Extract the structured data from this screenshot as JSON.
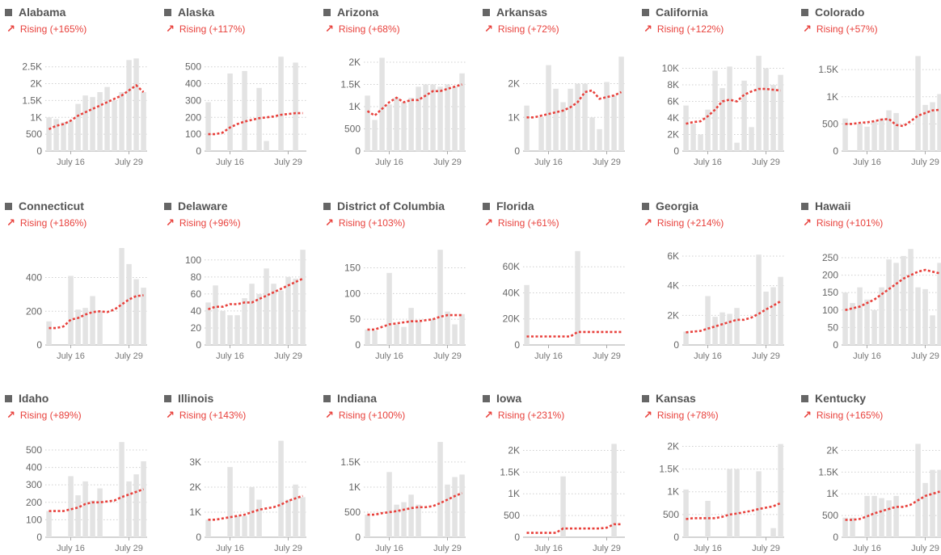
{
  "colors": {
    "bar": "#e3e3e3",
    "trend_line": "#e8413c",
    "rising": "#e8413c",
    "grid": "#cfcfcf",
    "axis": "#aaaaaa"
  },
  "icons": {
    "state": "state-shape-icon",
    "trend": "trend-up-arrow-icon"
  },
  "chart_data": [
    {
      "type": "bar",
      "state": "Alabama",
      "trend": "Rising (+165%)",
      "x_ticks": [
        "July 16",
        "July 29"
      ],
      "yticks": [
        0,
        500,
        1000,
        1500,
        2000,
        2500
      ],
      "ytick_labels": [
        "0",
        "500",
        "1K",
        "1.5K",
        "2K",
        "2.5K"
      ],
      "ylim": [
        0,
        2900
      ],
      "values": [
        1000,
        950,
        850,
        900,
        1400,
        1650,
        1600,
        1750,
        1900,
        1500,
        1750,
        2700,
        2750,
        1750
      ],
      "trend_values": [
        650,
        750,
        800,
        900,
        1050,
        1150,
        1250,
        1350,
        1450,
        1550,
        1650,
        1800,
        1950,
        1750
      ]
    },
    {
      "type": "bar",
      "state": "Alaska",
      "trend": "Rising (+117%)",
      "x_ticks": [
        "July 16",
        "July 29"
      ],
      "yticks": [
        0,
        100,
        200,
        300,
        400,
        500
      ],
      "ytick_labels": [
        "0",
        "100",
        "200",
        "300",
        "400",
        "500"
      ],
      "ylim": [
        0,
        580
      ],
      "values": [
        290,
        0,
        0,
        460,
        0,
        475,
        0,
        375,
        60,
        0,
        560,
        0,
        525,
        0
      ],
      "trend_values": [
        100,
        100,
        110,
        140,
        160,
        175,
        185,
        195,
        200,
        205,
        215,
        220,
        225,
        225
      ]
    },
    {
      "type": "bar",
      "state": "Arizona",
      "trend": "Rising (+68%)",
      "x_ticks": [
        "July 16",
        "July 29"
      ],
      "yticks": [
        0,
        500,
        1000,
        1500,
        2000
      ],
      "ytick_labels": [
        "0",
        "500",
        "1K",
        "1.5K",
        "2K"
      ],
      "ylim": [
        0,
        2200
      ],
      "values": [
        1250,
        700,
        2100,
        1050,
        1200,
        1100,
        1200,
        1450,
        1500,
        1500,
        1450,
        1500,
        1450,
        1750
      ],
      "trend_values": [
        900,
        800,
        950,
        1100,
        1200,
        1100,
        1150,
        1150,
        1250,
        1350,
        1350,
        1400,
        1450,
        1500
      ]
    },
    {
      "type": "bar",
      "state": "Arkansas",
      "trend": "Rising (+72%)",
      "x_ticks": [
        "July 16",
        "July 29"
      ],
      "yticks": [
        0,
        1000,
        2000
      ],
      "ytick_labels": [
        "0",
        "1K",
        "2K"
      ],
      "ylim": [
        0,
        2900
      ],
      "values": [
        1350,
        0,
        1000,
        2550,
        1850,
        1450,
        1850,
        2000,
        2000,
        1000,
        650,
        2050,
        1650,
        2800
      ],
      "trend_values": [
        1000,
        1000,
        1050,
        1100,
        1150,
        1200,
        1300,
        1450,
        1750,
        1800,
        1550,
        1600,
        1650,
        1750
      ]
    },
    {
      "type": "bar",
      "state": "California",
      "trend": "Rising (+122%)",
      "x_ticks": [
        "July 16",
        "July 29"
      ],
      "yticks": [
        0,
        2000,
        4000,
        6000,
        8000,
        10000
      ],
      "ytick_labels": [
        "0",
        "2K",
        "4K",
        "6K",
        "8K",
        "10K"
      ],
      "ylim": [
        0,
        11800
      ],
      "values": [
        5500,
        3300,
        2000,
        5000,
        9700,
        7600,
        10200,
        1000,
        8500,
        2900,
        11500,
        10000,
        8000,
        9200
      ],
      "trend_values": [
        3300,
        3500,
        3600,
        4200,
        5000,
        6000,
        6200,
        6000,
        6800,
        7200,
        7500,
        7500,
        7400,
        7300
      ]
    },
    {
      "type": "bar",
      "state": "Colorado",
      "trend": "Rising (+57%)",
      "x_ticks": [
        "July 16",
        "July 29"
      ],
      "yticks": [
        0,
        500,
        1000,
        1500
      ],
      "ytick_labels": [
        "0",
        "500",
        "1K",
        "1.5K"
      ],
      "ylim": [
        0,
        1800
      ],
      "values": [
        600,
        0,
        500,
        450,
        550,
        600,
        750,
        700,
        0,
        0,
        1750,
        850,
        900,
        1050
      ],
      "trend_values": [
        500,
        500,
        520,
        530,
        550,
        580,
        590,
        480,
        460,
        550,
        650,
        700,
        750,
        760
      ]
    },
    {
      "type": "bar",
      "state": "Connecticut",
      "trend": "Rising (+186%)",
      "x_ticks": [
        "July 16",
        "July 29"
      ],
      "yticks": [
        0,
        200,
        400
      ],
      "ytick_labels": [
        "0",
        "200",
        "400"
      ],
      "ylim": [
        0,
        580
      ],
      "values": [
        140,
        0,
        0,
        410,
        210,
        220,
        290,
        200,
        0,
        0,
        575,
        480,
        390,
        340
      ],
      "trend_values": [
        100,
        100,
        110,
        150,
        160,
        180,
        195,
        200,
        195,
        210,
        240,
        270,
        290,
        295
      ]
    },
    {
      "type": "bar",
      "state": "Delaware",
      "trend": "Rising (+96%)",
      "x_ticks": [
        "July 16",
        "July 29"
      ],
      "yticks": [
        0,
        20,
        40,
        60,
        80,
        100
      ],
      "ytick_labels": [
        "0",
        "20",
        "40",
        "60",
        "80",
        "100"
      ],
      "ylim": [
        0,
        115
      ],
      "values": [
        50,
        70,
        40,
        35,
        35,
        55,
        72,
        60,
        90,
        72,
        64,
        80,
        78,
        112
      ],
      "trend_values": [
        42,
        45,
        45,
        48,
        48,
        50,
        50,
        54,
        58,
        62,
        66,
        70,
        74,
        78
      ]
    },
    {
      "type": "bar",
      "state": "District of Columbia",
      "trend": "Rising (+103%)",
      "x_ticks": [
        "July 16",
        "July 29"
      ],
      "yticks": [
        0,
        50,
        100,
        150
      ],
      "ytick_labels": [
        "0",
        "50",
        "100",
        "150"
      ],
      "ylim": [
        0,
        190
      ],
      "values": [
        30,
        28,
        0,
        140,
        40,
        35,
        72,
        45,
        0,
        50,
        185,
        65,
        40,
        60
      ],
      "trend_values": [
        30,
        30,
        35,
        40,
        42,
        44,
        46,
        46,
        48,
        50,
        55,
        58,
        58,
        58
      ]
    },
    {
      "type": "bar",
      "state": "Florida",
      "trend": "Rising (+61%)",
      "x_ticks": [
        "July 16",
        "July 29"
      ],
      "yticks": [
        0,
        20000,
        40000,
        60000
      ],
      "ytick_labels": [
        "0",
        "20K",
        "40K",
        "60K"
      ],
      "ylim": [
        0,
        75000
      ],
      "values": [
        46000,
        0,
        0,
        0,
        0,
        0,
        0,
        72000,
        0,
        0,
        0,
        0,
        0,
        0
      ],
      "trend_values": [
        6500,
        6500,
        6500,
        6500,
        6500,
        6500,
        6500,
        10000,
        10000,
        10000,
        10000,
        10000,
        10000,
        10000
      ]
    },
    {
      "type": "bar",
      "state": "Georgia",
      "trend": "Rising (+214%)",
      "x_ticks": [
        "July 16",
        "July 29"
      ],
      "yticks": [
        0,
        2000,
        4000,
        6000
      ],
      "ytick_labels": [
        "0",
        "2K",
        "4K",
        "6K"
      ],
      "ylim": [
        0,
        6600
      ],
      "values": [
        900,
        0,
        0,
        3300,
        1900,
        2200,
        2100,
        2500,
        0,
        0,
        6100,
        3600,
        3900,
        4600
      ],
      "trend_values": [
        850,
        900,
        950,
        1100,
        1250,
        1400,
        1550,
        1700,
        1700,
        1850,
        2100,
        2400,
        2650,
        2950
      ]
    },
    {
      "type": "bar",
      "state": "Hawaii",
      "trend": "Rising (+101%)",
      "x_ticks": [
        "July 16",
        "July 29"
      ],
      "yticks": [
        0,
        50,
        100,
        150,
        200,
        250
      ],
      "ytick_labels": [
        "0",
        "50",
        "100",
        "150",
        "200",
        "250"
      ],
      "ylim": [
        0,
        280
      ],
      "values": [
        150,
        120,
        165,
        130,
        100,
        165,
        245,
        235,
        255,
        275,
        165,
        160,
        85,
        235
      ],
      "trend_values": [
        100,
        105,
        110,
        120,
        130,
        145,
        160,
        175,
        190,
        200,
        210,
        215,
        210,
        205
      ]
    },
    {
      "type": "bar",
      "state": "Idaho",
      "trend": "Rising (+89%)",
      "x_ticks": [
        "July 16",
        "July 29"
      ],
      "yticks": [
        0,
        100,
        200,
        300,
        400,
        500
      ],
      "ytick_labels": [
        "0",
        "100",
        "200",
        "300",
        "400",
        "500"
      ],
      "ylim": [
        0,
        560
      ],
      "values": [
        150,
        0,
        0,
        350,
        240,
        320,
        210,
        280,
        0,
        0,
        545,
        320,
        360,
        435
      ],
      "trend_values": [
        150,
        150,
        150,
        160,
        170,
        190,
        200,
        200,
        205,
        210,
        230,
        245,
        260,
        275
      ]
    },
    {
      "type": "bar",
      "state": "Illinois",
      "trend": "Rising (+143%)",
      "x_ticks": [
        "July 16",
        "July 29"
      ],
      "yticks": [
        0,
        1000,
        2000,
        3000
      ],
      "ytick_labels": [
        "0",
        "1K",
        "2K",
        "3K"
      ],
      "ylim": [
        0,
        3900
      ],
      "values": [
        700,
        0,
        0,
        2800,
        850,
        850,
        2000,
        1500,
        0,
        0,
        3850,
        1500,
        2100,
        1600
      ],
      "trend_values": [
        700,
        700,
        750,
        800,
        850,
        900,
        1000,
        1100,
        1150,
        1200,
        1300,
        1450,
        1550,
        1650
      ]
    },
    {
      "type": "bar",
      "state": "Indiana",
      "trend": "Rising (+100%)",
      "x_ticks": [
        "July 16",
        "July 29"
      ],
      "yticks": [
        0,
        500,
        1000,
        1500
      ],
      "ytick_labels": [
        "0",
        "500",
        "1K",
        "1.5K"
      ],
      "ylim": [
        0,
        1950
      ],
      "values": [
        450,
        0,
        0,
        1300,
        650,
        700,
        850,
        650,
        0,
        0,
        1900,
        1050,
        1200,
        1250
      ],
      "trend_values": [
        450,
        450,
        480,
        500,
        520,
        550,
        580,
        600,
        600,
        620,
        680,
        750,
        820,
        880
      ]
    },
    {
      "type": "bar",
      "state": "Iowa",
      "trend": "Rising (+231%)",
      "x_ticks": [
        "July 16",
        "July 29"
      ],
      "yticks": [
        0,
        500,
        1000,
        1500,
        2000
      ],
      "ytick_labels": [
        "0",
        "500",
        "1K",
        "1.5K",
        "2K"
      ],
      "ylim": [
        0,
        2250
      ],
      "values": [
        0,
        0,
        0,
        0,
        0,
        1400,
        0,
        0,
        0,
        0,
        0,
        0,
        2150,
        0
      ],
      "trend_values": [
        100,
        100,
        100,
        100,
        100,
        200,
        200,
        200,
        200,
        200,
        200,
        220,
        300,
        300
      ]
    },
    {
      "type": "bar",
      "state": "Kansas",
      "trend": "Rising (+78%)",
      "x_ticks": [
        "July 16",
        "July 29"
      ],
      "yticks": [
        0,
        500,
        1000,
        1500,
        2000
      ],
      "ytick_labels": [
        "0",
        "500",
        "1K",
        "1.5K",
        "2K"
      ],
      "ylim": [
        0,
        2150
      ],
      "values": [
        1050,
        0,
        0,
        800,
        0,
        0,
        1500,
        1500,
        0,
        0,
        1450,
        0,
        200,
        2050
      ],
      "trend_values": [
        400,
        420,
        420,
        420,
        420,
        450,
        500,
        520,
        550,
        580,
        620,
        650,
        680,
        750
      ]
    },
    {
      "type": "bar",
      "state": "Kentucky",
      "trend": "Rising (+165%)",
      "x_ticks": [
        "July 16",
        "July 29"
      ],
      "yticks": [
        0,
        500,
        1000,
        1500,
        2000
      ],
      "ytick_labels": [
        "0",
        "500",
        "1K",
        "1.5K",
        "2K"
      ],
      "ylim": [
        0,
        2250
      ],
      "values": [
        450,
        450,
        0,
        950,
        950,
        900,
        850,
        950,
        0,
        0,
        2150,
        1250,
        1550,
        1550
      ],
      "trend_values": [
        400,
        400,
        420,
        480,
        550,
        600,
        650,
        700,
        700,
        750,
        850,
        950,
        1000,
        1050
      ]
    }
  ]
}
